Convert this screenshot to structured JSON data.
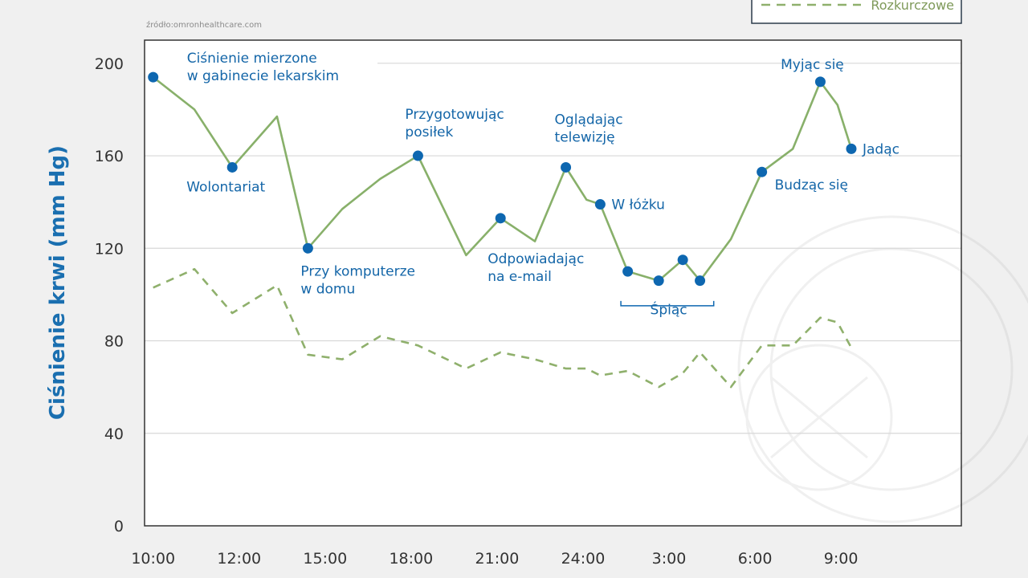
{
  "source": "źródło:omronhealthcare.com",
  "colors": {
    "systolic": "#88b06a",
    "diastolic": "#8fb06c",
    "marker": "#0e67b0",
    "annotation": "#1466a8",
    "grid": "#d8d8d8",
    "axis": "#333333",
    "background": "#ffffff"
  },
  "legend": {
    "position": "top-right",
    "items": [
      {
        "label": "Rozkurczowe",
        "style": "dashed"
      }
    ]
  },
  "chart_data": {
    "type": "line",
    "title": "",
    "ylabel": "Ciśnienie krwi (mm Hg)",
    "xlabel": "",
    "ylim": [
      0,
      210
    ],
    "xlim": [
      9.75,
      33.5
    ],
    "yticks": [
      0,
      40,
      80,
      120,
      160,
      200
    ],
    "xticks": [
      {
        "label": "10:00",
        "value": 10
      },
      {
        "label": "12:00",
        "value": 12.5
      },
      {
        "label": "15:00",
        "value": 15
      },
      {
        "label": "18:00",
        "value": 17.5
      },
      {
        "label": "21:00",
        "value": 20
      },
      {
        "label": "24:00",
        "value": 22.5
      },
      {
        "label": "3:00",
        "value": 25
      },
      {
        "label": "6:00",
        "value": 27.5
      },
      {
        "label": "9:00",
        "value": 30
      }
    ],
    "grid": true,
    "series": [
      {
        "name": "",
        "style": "solid",
        "points": [
          {
            "x": 10.0,
            "y": 194
          },
          {
            "x": 11.2,
            "y": 180
          },
          {
            "x": 12.3,
            "y": 155
          },
          {
            "x": 13.6,
            "y": 177
          },
          {
            "x": 14.5,
            "y": 120
          },
          {
            "x": 15.5,
            "y": 137
          },
          {
            "x": 16.6,
            "y": 150
          },
          {
            "x": 17.7,
            "y": 160
          },
          {
            "x": 19.1,
            "y": 117
          },
          {
            "x": 20.1,
            "y": 133
          },
          {
            "x": 21.1,
            "y": 123
          },
          {
            "x": 22.0,
            "y": 155
          },
          {
            "x": 22.6,
            "y": 141
          },
          {
            "x": 23.0,
            "y": 139
          },
          {
            "x": 23.8,
            "y": 110
          },
          {
            "x": 24.7,
            "y": 106
          },
          {
            "x": 25.4,
            "y": 115
          },
          {
            "x": 25.9,
            "y": 106
          },
          {
            "x": 26.8,
            "y": 124
          },
          {
            "x": 27.7,
            "y": 153
          },
          {
            "x": 28.6,
            "y": 163
          },
          {
            "x": 29.4,
            "y": 192
          },
          {
            "x": 29.9,
            "y": 182
          },
          {
            "x": 30.3,
            "y": 163
          }
        ]
      },
      {
        "name": "Rozkurczowe",
        "style": "dashed",
        "points": [
          {
            "x": 10.0,
            "y": 103
          },
          {
            "x": 11.2,
            "y": 111
          },
          {
            "x": 12.3,
            "y": 92
          },
          {
            "x": 13.6,
            "y": 104
          },
          {
            "x": 14.5,
            "y": 74
          },
          {
            "x": 15.5,
            "y": 72
          },
          {
            "x": 16.6,
            "y": 82
          },
          {
            "x": 17.7,
            "y": 78
          },
          {
            "x": 19.1,
            "y": 68
          },
          {
            "x": 20.1,
            "y": 75
          },
          {
            "x": 21.1,
            "y": 72
          },
          {
            "x": 22.0,
            "y": 68
          },
          {
            "x": 22.6,
            "y": 68
          },
          {
            "x": 23.0,
            "y": 65
          },
          {
            "x": 23.8,
            "y": 67
          },
          {
            "x": 24.7,
            "y": 60
          },
          {
            "x": 25.4,
            "y": 66
          },
          {
            "x": 25.9,
            "y": 75
          },
          {
            "x": 26.8,
            "y": 60
          },
          {
            "x": 27.7,
            "y": 78
          },
          {
            "x": 28.6,
            "y": 78
          },
          {
            "x": 29.4,
            "y": 90
          },
          {
            "x": 29.9,
            "y": 88
          },
          {
            "x": 30.3,
            "y": 77
          }
        ]
      }
    ],
    "markers": [
      {
        "x": 10.0,
        "y": 194
      },
      {
        "x": 12.3,
        "y": 155
      },
      {
        "x": 14.5,
        "y": 120
      },
      {
        "x": 17.7,
        "y": 160
      },
      {
        "x": 20.1,
        "y": 133
      },
      {
        "x": 22.0,
        "y": 155
      },
      {
        "x": 23.0,
        "y": 139
      },
      {
        "x": 23.8,
        "y": 110
      },
      {
        "x": 24.7,
        "y": 106
      },
      {
        "x": 25.4,
        "y": 115
      },
      {
        "x": 25.9,
        "y": 106
      },
      {
        "x": 27.7,
        "y": 153
      },
      {
        "x": 29.4,
        "y": 192
      },
      {
        "x": 30.3,
        "y": 163
      }
    ],
    "annotations": [
      {
        "lines": [
          "Ciśnienie mierzone",
          "w gabinecie lekarskim"
        ],
        "x": 10.0,
        "y": 194,
        "dx": 42,
        "dy": -18,
        "anchor": "start"
      },
      {
        "lines": [
          "Wolontariat"
        ],
        "x": 12.3,
        "y": 155,
        "dx": -8,
        "dy": 30,
        "anchor": "middle"
      },
      {
        "lines": [
          "Przy komputerze",
          "w domu"
        ],
        "x": 14.5,
        "y": 120,
        "dx": -9,
        "dy": 34,
        "anchor": "start"
      },
      {
        "lines": [
          "Przygotowując",
          "posiłek"
        ],
        "x": 17.7,
        "y": 160,
        "dx": -16,
        "dy": -46,
        "anchor": "start"
      },
      {
        "lines": [
          "Odpowiadając",
          "na e-mail"
        ],
        "x": 20.1,
        "y": 133,
        "dx": -16,
        "dy": 56,
        "anchor": "start"
      },
      {
        "lines": [
          "Oglądając",
          "telewizję"
        ],
        "x": 22.0,
        "y": 155,
        "dx": -14,
        "dy": -54,
        "anchor": "start"
      },
      {
        "lines": [
          "W łóżku"
        ],
        "x": 23.0,
        "y": 139,
        "dx": 14,
        "dy": 6,
        "anchor": "start"
      },
      {
        "lines": [
          "Śpiąc"
        ],
        "x": 24.85,
        "y": 106,
        "dx": 6,
        "dy": 42,
        "anchor": "middle"
      },
      {
        "lines": [
          "Budząc się"
        ],
        "x": 27.7,
        "y": 153,
        "dx": 16,
        "dy": 22,
        "anchor": "start"
      },
      {
        "lines": [
          "Myjąc się"
        ],
        "x": 29.4,
        "y": 192,
        "dx": -10,
        "dy": -16,
        "anchor": "middle"
      },
      {
        "lines": [
          "Jadąc"
        ],
        "x": 30.3,
        "y": 163,
        "dx": 14,
        "dy": 6,
        "anchor": "start"
      }
    ],
    "bracket": {
      "x_start": 23.6,
      "x_end": 26.3,
      "y": 100
    }
  }
}
